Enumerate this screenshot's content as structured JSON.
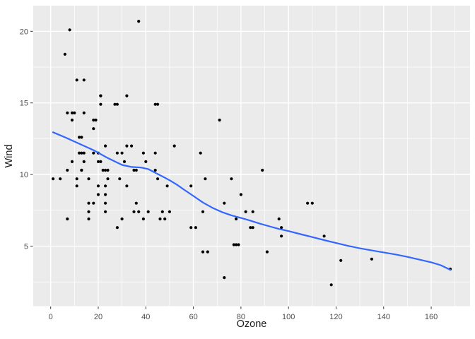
{
  "chart_data": {
    "type": "scatter",
    "title": "",
    "xlabel": "Ozone",
    "ylabel": "Wind",
    "x_ticks": [
      0,
      20,
      40,
      60,
      80,
      100,
      120,
      140,
      160
    ],
    "y_ticks": [
      5,
      10,
      15,
      20
    ],
    "x_minor_gridlines": [
      10,
      30,
      50,
      70,
      90,
      110,
      130,
      150,
      170
    ],
    "y_minor_gridlines": [
      2.5,
      7.5,
      12.5,
      17.5
    ],
    "xlim": [
      -7.34,
      176.33
    ],
    "ylim": [
      0.81,
      21.79
    ],
    "grid": "white major and minor gridlines on gray panel",
    "legend": "none",
    "colors": {
      "panel_background": "#EBEBEB",
      "gridline": "#FFFFFF",
      "point": "#000000",
      "smooth_line": "#3366FF",
      "tick_label": "#4D4D4D",
      "axis_title": "#1A1A1A",
      "tick_mark": "#333333",
      "figure_background": "#FFFFFF"
    },
    "points": [
      [
        41,
        7.4
      ],
      [
        36,
        8
      ],
      [
        12,
        12.6
      ],
      [
        18,
        11.5
      ],
      [
        28,
        14.9
      ],
      [
        23,
        8.6
      ],
      [
        19,
        13.8
      ],
      [
        8,
        20.1
      ],
      [
        7,
        6.9
      ],
      [
        16,
        9.7
      ],
      [
        11,
        9.2
      ],
      [
        14,
        10.9
      ],
      [
        18,
        13.2
      ],
      [
        14,
        11.5
      ],
      [
        34,
        12
      ],
      [
        6,
        18.4
      ],
      [
        30,
        11.5
      ],
      [
        11,
        9.7
      ],
      [
        1,
        9.7
      ],
      [
        11,
        16.6
      ],
      [
        4,
        9.7
      ],
      [
        32,
        12
      ],
      [
        23,
        12
      ],
      [
        45,
        14.9
      ],
      [
        115,
        5.7
      ],
      [
        37,
        7.4
      ],
      [
        29,
        9.7
      ],
      [
        71,
        13.8
      ],
      [
        39,
        11.5
      ],
      [
        23,
        8
      ],
      [
        21,
        14.9
      ],
      [
        37,
        20.7
      ],
      [
        20,
        9.2
      ],
      [
        12,
        11.5
      ],
      [
        13,
        10.3
      ],
      [
        135,
        4.1
      ],
      [
        49,
        9.2
      ],
      [
        32,
        9.2
      ],
      [
        64,
        4.6
      ],
      [
        40,
        10.9
      ],
      [
        77,
        5.1
      ],
      [
        97,
        6.3
      ],
      [
        97,
        5.7
      ],
      [
        85,
        7.4
      ],
      [
        10,
        14.3
      ],
      [
        27,
        14.9
      ],
      [
        7,
        14.3
      ],
      [
        48,
        6.9
      ],
      [
        35,
        10.3
      ],
      [
        61,
        6.3
      ],
      [
        79,
        5.1
      ],
      [
        63,
        11.5
      ],
      [
        16,
        6.9
      ],
      [
        80,
        8.6
      ],
      [
        108,
        8
      ],
      [
        20,
        8.6
      ],
      [
        52,
        12
      ],
      [
        82,
        7.4
      ],
      [
        50,
        7.4
      ],
      [
        64,
        7.4
      ],
      [
        59,
        9.2
      ],
      [
        39,
        6.9
      ],
      [
        9,
        13.8
      ],
      [
        16,
        7.4
      ],
      [
        78,
        6.9
      ],
      [
        35,
        7.4
      ],
      [
        66,
        4.6
      ],
      [
        122,
        4
      ],
      [
        89,
        10.3
      ],
      [
        110,
        8
      ],
      [
        44,
        11.5
      ],
      [
        28,
        11.5
      ],
      [
        65,
        9.7
      ],
      [
        22,
        10.3
      ],
      [
        59,
        6.3
      ],
      [
        23,
        7.4
      ],
      [
        31,
        10.9
      ],
      [
        44,
        10.3
      ],
      [
        21,
        15.5
      ],
      [
        9,
        14.3
      ],
      [
        45,
        9.7
      ],
      [
        168,
        3.4
      ],
      [
        73,
        8
      ],
      [
        76,
        9.7
      ],
      [
        118,
        2.3
      ],
      [
        84,
        6.3
      ],
      [
        85,
        6.3
      ],
      [
        96,
        6.9
      ],
      [
        78,
        5.1
      ],
      [
        73,
        2.8
      ],
      [
        91,
        4.6
      ],
      [
        47,
        7.4
      ],
      [
        32,
        15.5
      ],
      [
        20,
        10.9
      ],
      [
        23,
        10.3
      ],
      [
        21,
        10.9
      ],
      [
        24,
        9.7
      ],
      [
        44,
        14.9
      ],
      [
        21,
        15.5
      ],
      [
        28,
        6.3
      ],
      [
        9,
        10.9
      ],
      [
        13,
        11.5
      ],
      [
        46,
        6.9
      ],
      [
        18,
        13.8
      ],
      [
        13,
        10.3
      ],
      [
        24,
        10.3
      ],
      [
        16,
        8
      ],
      [
        13,
        12.6
      ],
      [
        23,
        9.2
      ],
      [
        36,
        10.3
      ],
      [
        7,
        10.3
      ],
      [
        14,
        16.6
      ],
      [
        30,
        6.9
      ],
      [
        14,
        14.3
      ],
      [
        18,
        8
      ],
      [
        20,
        11.5
      ]
    ],
    "smooth_line": {
      "method": "loess",
      "points": [
        [
          1,
          12.95
        ],
        [
          6,
          12.6
        ],
        [
          12,
          12.15
        ],
        [
          18,
          11.7
        ],
        [
          24,
          11.15
        ],
        [
          30,
          10.67
        ],
        [
          34,
          10.53
        ],
        [
          38,
          10.49
        ],
        [
          41,
          10.38
        ],
        [
          44,
          10.12
        ],
        [
          47,
          9.87
        ],
        [
          50,
          9.6
        ],
        [
          53,
          9.3
        ],
        [
          56,
          8.95
        ],
        [
          60,
          8.5
        ],
        [
          64,
          8.05
        ],
        [
          68,
          7.68
        ],
        [
          72,
          7.38
        ],
        [
          76,
          7.15
        ],
        [
          80,
          6.97
        ],
        [
          84,
          6.78
        ],
        [
          88,
          6.57
        ],
        [
          92,
          6.38
        ],
        [
          96,
          6.2
        ],
        [
          100,
          6.05
        ],
        [
          105,
          5.84
        ],
        [
          110,
          5.63
        ],
        [
          115,
          5.42
        ],
        [
          120,
          5.22
        ],
        [
          125,
          5.02
        ],
        [
          130,
          4.85
        ],
        [
          135,
          4.7
        ],
        [
          140,
          4.56
        ],
        [
          145,
          4.42
        ],
        [
          150,
          4.25
        ],
        [
          155,
          4.06
        ],
        [
          160,
          3.87
        ],
        [
          164,
          3.67
        ],
        [
          168,
          3.35
        ]
      ]
    }
  }
}
